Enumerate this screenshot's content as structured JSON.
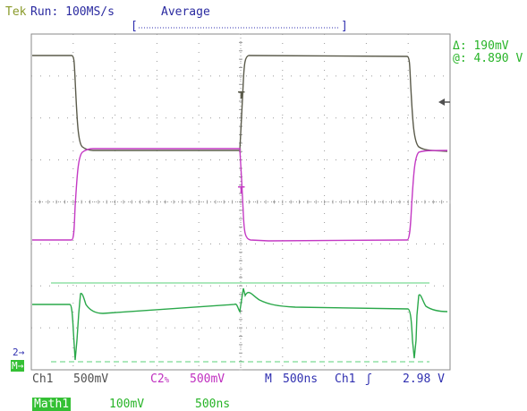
{
  "status": {
    "brand": "Tek",
    "run": "Run: 100MS/s",
    "mode": "Average"
  },
  "cursor_readout": {
    "delta": "Δ: 190mV",
    "at": "@: 4.890 V"
  },
  "channel_markers": {
    "ch2": "2→",
    "math": "M→"
  },
  "settings_bar": {
    "ch1_label": "Ch1",
    "ch1_scale": "500mV",
    "ch2_label": "C2",
    "ch2_suffix": "%",
    "ch2_scale": "500mV",
    "timebase_label": "M",
    "timebase_value": "500ns",
    "trigger_source": "Ch1",
    "trigger_level": "2.98 V"
  },
  "math_bar": {
    "label": "Math1",
    "scale": "100mV",
    "time": "500ns"
  },
  "colors": {
    "ch1": "#5a5a4a",
    "ch2": "#c43ac4",
    "math": "#2aa84a",
    "grid": "#9a9a9a",
    "readout": "#28b428"
  }
}
